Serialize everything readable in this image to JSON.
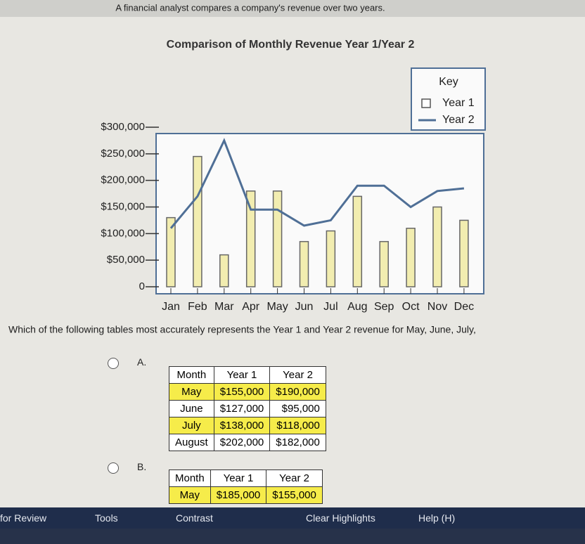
{
  "header": {
    "prompt": "A financial analyst compares a company's revenue over two years."
  },
  "chart_data": {
    "type": "bar",
    "title": "Comparison of Monthly Revenue Year 1/Year 2",
    "legend_title": "Key",
    "legend": "upper right",
    "grid": false,
    "categories": [
      "Jan",
      "Feb",
      "Mar",
      "Apr",
      "May",
      "Jun",
      "Jul",
      "Aug",
      "Sep",
      "Oct",
      "Nov",
      "Dec"
    ],
    "series": [
      {
        "name": "Year 1",
        "type": "bar",
        "color": "#f2edb0",
        "values": [
          130000,
          245000,
          60000,
          180000,
          180000,
          85000,
          105000,
          170000,
          85000,
          110000,
          150000,
          125000
        ]
      },
      {
        "name": "Year 2",
        "type": "line",
        "color": "#4f6f96",
        "values": [
          110000,
          170000,
          275000,
          145000,
          145000,
          115000,
          125000,
          190000,
          190000,
          150000,
          180000,
          185000
        ]
      }
    ],
    "ylim": [
      0,
      300000
    ],
    "yticks": [
      0,
      {
        "value": 50000,
        "label": "$50,000"
      },
      {
        "value": 100000,
        "label": "$100,000"
      },
      {
        "value": 150000,
        "label": "$150,000"
      },
      {
        "value": 200000,
        "label": "$200,000"
      },
      {
        "value": 250000,
        "label": "$250,000"
      },
      {
        "value": 300000,
        "label": "$300,000"
      }
    ]
  },
  "question": "Which of the following tables most accurately represents the Year 1 and Year 2 revenue for May, June, July,",
  "options": [
    {
      "label": "A.",
      "table": {
        "columns": [
          "Month",
          "Year 1",
          "Year 2"
        ],
        "rows": [
          [
            "May",
            "$155,000",
            "$190,000"
          ],
          [
            "June",
            "$127,000",
            "$95,000"
          ],
          [
            "July",
            "$138,000",
            "$118,000"
          ],
          [
            "August",
            "$202,000",
            "$182,000"
          ]
        ]
      }
    },
    {
      "label": "B.",
      "table": {
        "columns": [
          "Month",
          "Year 1",
          "Year 2"
        ],
        "rows": [
          [
            "May",
            "$185,000",
            "$155,000"
          ]
        ]
      }
    }
  ],
  "toolbar": [
    "for Review",
    "Tools",
    "Contrast",
    "Clear Highlights",
    "Help (H)"
  ]
}
